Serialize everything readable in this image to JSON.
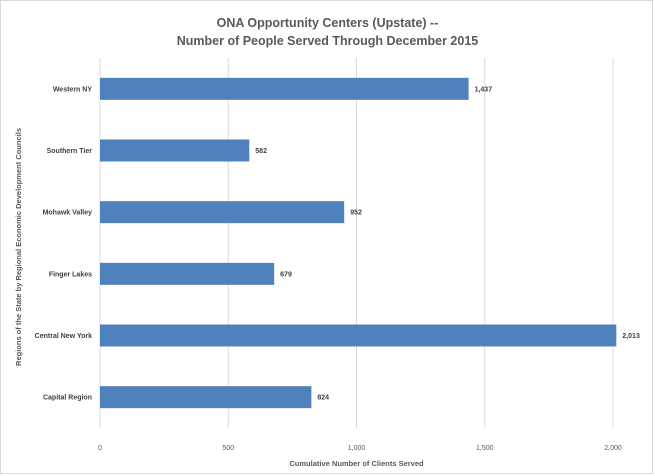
{
  "chart_data": {
    "type": "bar",
    "orientation": "horizontal",
    "title": "ONA Opportunity Centers (Upstate) --",
    "subtitle": "Number of People Served Through December 2015",
    "categories": [
      "Western NY",
      "Southern Tier",
      "Mohawk Valley",
      "Finger Lakes",
      "Central New York",
      "Capital Region"
    ],
    "values": [
      1437,
      582,
      952,
      679,
      2013,
      824
    ],
    "data_labels": [
      "1,437",
      "582",
      "952",
      "679",
      "2,013",
      "824"
    ],
    "xlabel": "Cumulative Number of Clients Served",
    "ylabel": "Regions of the State by Regional Economic Development Councils",
    "xlim": [
      0,
      2000
    ],
    "x_ticks": [
      0,
      500,
      1000,
      1500,
      2000
    ],
    "x_tick_labels": [
      "0",
      "500",
      "1,000",
      "1,500",
      "2,000"
    ],
    "grid": true,
    "legend": "none",
    "bar_color": "#4f81bd",
    "grid_color": "#d9d9d9"
  }
}
